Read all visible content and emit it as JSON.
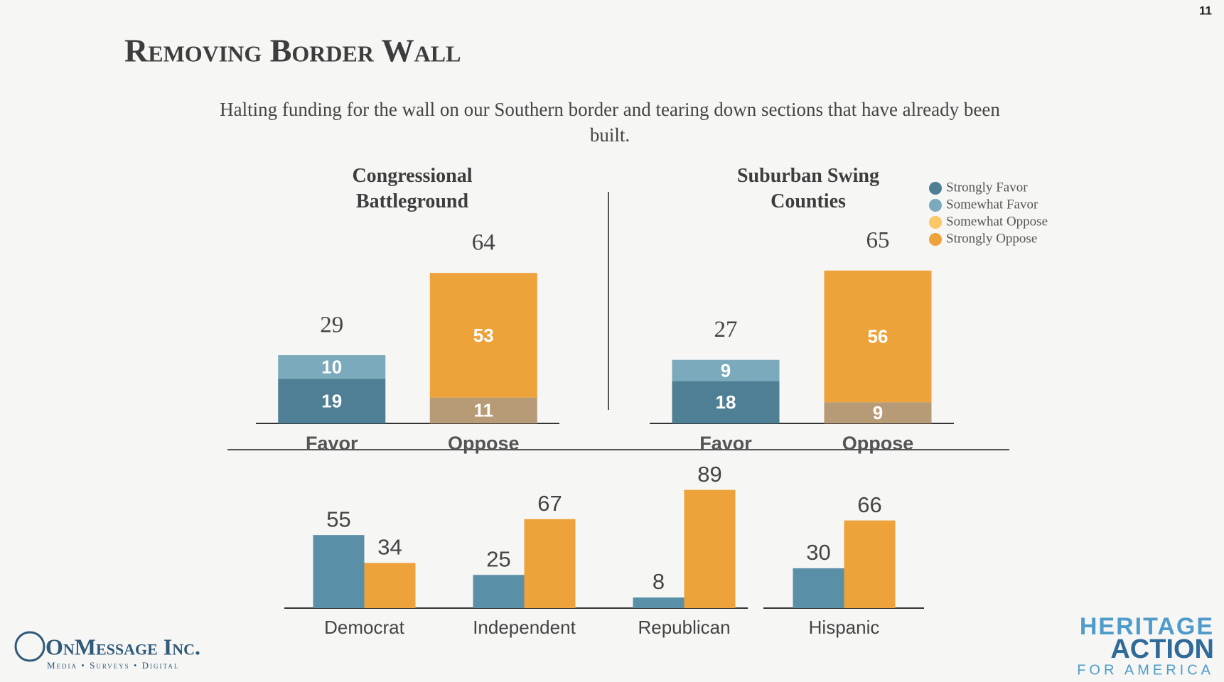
{
  "slide": {
    "page_number": "11",
    "title": "Removing Border Wall",
    "subtitle": "Halting funding for the wall on our Southern border and tearing down sections that have already been built.",
    "logo_left": {
      "name": "OnMessage Inc.",
      "tagline": "Media • Surveys • Digital"
    },
    "logo_right": {
      "line1": "HERITAGE",
      "line2": "ACTION",
      "line3": "FOR AMERICA"
    }
  },
  "chart_data": [
    {
      "type": "stacked_bar",
      "title": "Congressional Battleground",
      "categories": [
        "Favor",
        "Oppose"
      ],
      "totals": [
        29,
        64
      ],
      "series": [
        {
          "color": "#4e7f94",
          "values": [
            19,
            null
          ]
        },
        {
          "color": "#7aaabb",
          "values": [
            10,
            null
          ]
        },
        {
          "color": "#b79b77",
          "values": [
            null,
            11
          ]
        },
        {
          "color": "#eea23a",
          "values": [
            null,
            53
          ]
        }
      ]
    },
    {
      "type": "stacked_bar",
      "title": "Suburban Swing Counties",
      "categories": [
        "Favor",
        "Oppose"
      ],
      "totals": [
        27,
        65
      ],
      "legend": "top-right",
      "series": [
        {
          "name": "Strongly Favor",
          "color": "#4e7f94",
          "values": [
            18,
            null
          ]
        },
        {
          "name": "Somewhat Favor",
          "color": "#7aaabb",
          "values": [
            9,
            null
          ]
        },
        {
          "name": "Somewhat Oppose",
          "color": "#b79b77",
          "legend_color": "#fcc866",
          "values": [
            null,
            9
          ]
        },
        {
          "name": "Strongly Oppose",
          "color": "#eea23a",
          "values": [
            null,
            56
          ]
        }
      ]
    },
    {
      "type": "grouped_bar",
      "categories": [
        "Democrat",
        "Independent",
        "Republican",
        "Hispanic"
      ],
      "series": [
        {
          "color": "#5a8fa8",
          "values": [
            55,
            25,
            8,
            30
          ]
        },
        {
          "color": "#eea23a",
          "values": [
            34,
            67,
            89,
            66
          ]
        }
      ]
    }
  ]
}
